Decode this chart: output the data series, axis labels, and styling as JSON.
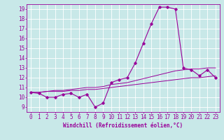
{
  "xlabel": "Windchill (Refroidissement éolien,°C)",
  "bg_color": "#c8e8e8",
  "line_color": "#990099",
  "grid_color": "#ffffff",
  "xlim": [
    -0.5,
    23.5
  ],
  "ylim": [
    8.5,
    19.5
  ],
  "xticks": [
    0,
    1,
    2,
    3,
    4,
    5,
    6,
    7,
    8,
    9,
    10,
    11,
    12,
    13,
    14,
    15,
    16,
    17,
    18,
    19,
    20,
    21,
    22,
    23
  ],
  "yticks": [
    9,
    10,
    11,
    12,
    13,
    14,
    15,
    16,
    17,
    18,
    19
  ],
  "main_x": [
    0,
    1,
    2,
    3,
    4,
    5,
    6,
    7,
    8,
    9,
    10,
    11,
    12,
    13,
    14,
    15,
    16,
    17,
    18,
    19,
    20,
    21,
    22,
    23
  ],
  "main_y": [
    10.5,
    10.4,
    10.0,
    10.0,
    10.3,
    10.4,
    10.0,
    10.3,
    9.0,
    9.4,
    11.5,
    11.8,
    12.0,
    13.5,
    15.5,
    17.5,
    19.2,
    19.2,
    19.0,
    13.0,
    12.8,
    12.2,
    12.8,
    12.0
  ],
  "line2_x": [
    0,
    1,
    2,
    3,
    4,
    5,
    6,
    7,
    8,
    9,
    10,
    11,
    12,
    13,
    14,
    15,
    16,
    17,
    18,
    19,
    20,
    21,
    22,
    23
  ],
  "line2_y": [
    10.5,
    10.5,
    10.6,
    10.6,
    10.6,
    10.7,
    10.7,
    10.8,
    10.8,
    10.9,
    11.0,
    11.1,
    11.2,
    11.3,
    11.4,
    11.5,
    11.6,
    11.7,
    11.8,
    11.9,
    12.0,
    12.0,
    12.1,
    12.2
  ],
  "line3_x": [
    0,
    1,
    2,
    3,
    4,
    5,
    6,
    7,
    8,
    9,
    10,
    11,
    12,
    13,
    14,
    15,
    16,
    17,
    18,
    19,
    20,
    21,
    22,
    23
  ],
  "line3_y": [
    10.5,
    10.5,
    10.6,
    10.7,
    10.7,
    10.8,
    10.9,
    11.0,
    11.0,
    11.1,
    11.3,
    11.4,
    11.5,
    11.7,
    11.9,
    12.1,
    12.3,
    12.5,
    12.7,
    12.8,
    12.9,
    12.9,
    13.0,
    13.0
  ],
  "xlabel_fontsize": 5.5,
  "tick_fontsize": 5.5
}
